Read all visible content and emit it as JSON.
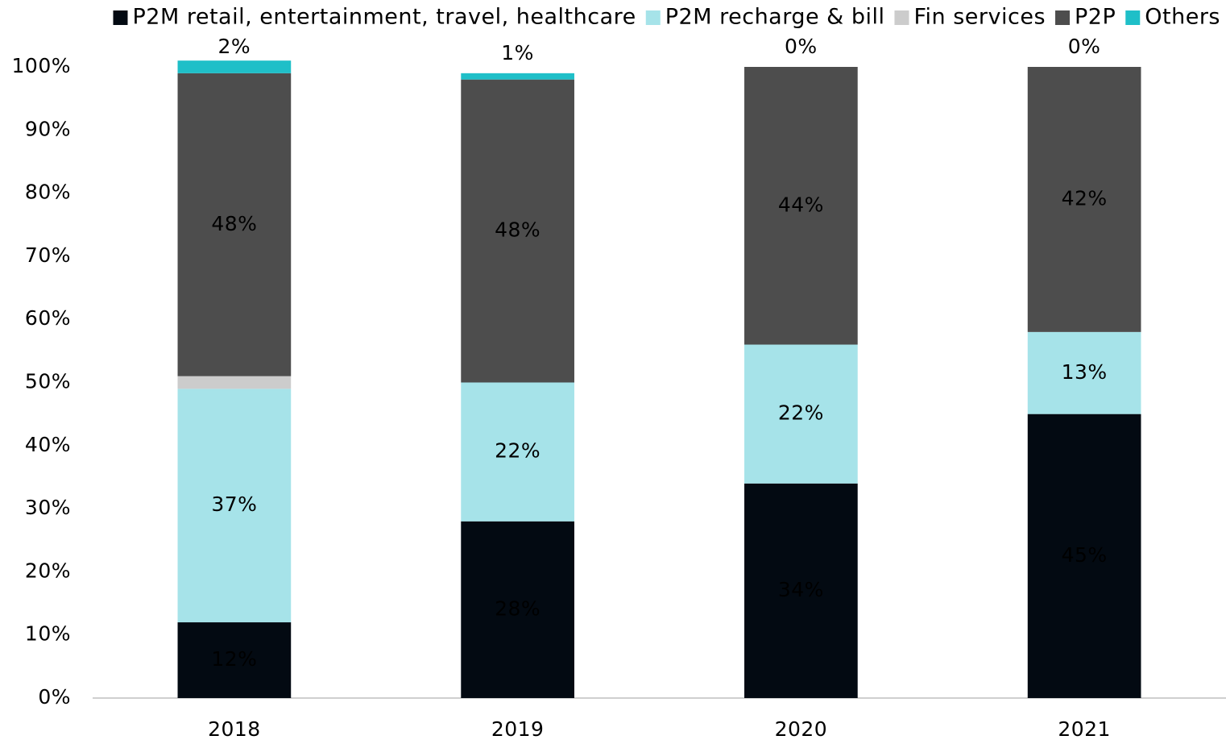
{
  "chart_data": {
    "type": "stacked_bar",
    "categories": [
      "2018",
      "2019",
      "2020",
      "2021"
    ],
    "series": [
      {
        "name": "P2M retail, entertainment, travel, healthcare",
        "color": "#030a12",
        "label_color": "#ffffff",
        "values": [
          12,
          28,
          34,
          45
        ],
        "value_labels": [
          "12%",
          "28%",
          "34%",
          "45%"
        ]
      },
      {
        "name": "P2M recharge & bill",
        "color": "#a6e3e9",
        "label_color": "#000000",
        "values": [
          37,
          22,
          22,
          13
        ],
        "value_labels": [
          "37%",
          "22%",
          "22%",
          "13%"
        ]
      },
      {
        "name": "Fin services",
        "color": "#cccccc",
        "label_color": "#000000",
        "values": [
          2,
          0,
          0,
          0
        ],
        "value_labels": [
          null,
          null,
          null,
          null
        ]
      },
      {
        "name": "P2P",
        "color": "#4d4d4d",
        "label_color": "#ffffff",
        "values": [
          48,
          48,
          44,
          42
        ],
        "value_labels": [
          "48%",
          "48%",
          "44%",
          "42%"
        ]
      },
      {
        "name": "Others",
        "color": "#1fbfc8",
        "label_color": "#000000",
        "label_position": "outside",
        "values": [
          2,
          1,
          0,
          0
        ],
        "value_labels": [
          "2%",
          "1%",
          "0%",
          "0%"
        ]
      }
    ],
    "ylim": [
      0,
      100
    ],
    "yticks": [
      {
        "value": 0,
        "label": "0%"
      },
      {
        "value": 10,
        "label": "10%"
      },
      {
        "value": 20,
        "label": "20%"
      },
      {
        "value": 30,
        "label": "30%"
      },
      {
        "value": 40,
        "label": "40%"
      },
      {
        "value": 50,
        "label": "50%"
      },
      {
        "value": 60,
        "label": "60%"
      },
      {
        "value": 70,
        "label": "70%"
      },
      {
        "value": 80,
        "label": "80%"
      },
      {
        "value": 90,
        "label": "90%"
      },
      {
        "value": 100,
        "label": "100%"
      }
    ],
    "grid": false,
    "legend": "top"
  }
}
